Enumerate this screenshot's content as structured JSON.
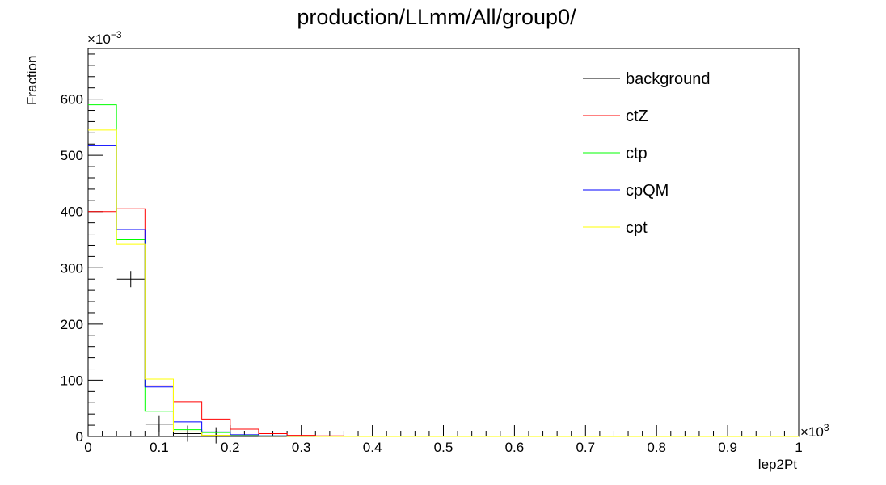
{
  "chart_data": {
    "type": "histogram",
    "title": "production/LLmm/All/group0/",
    "xlabel": "lep2Pt",
    "ylabel": "Fraction",
    "x_multiplier": "×10",
    "x_multiplier_exp": "3",
    "y_multiplier": "×10",
    "y_multiplier_exp": "−3",
    "xlim": [
      0,
      1
    ],
    "ylim": [
      0,
      690
    ],
    "x_ticks": [
      "0",
      "0.1",
      "0.2",
      "0.3",
      "0.4",
      "0.5",
      "0.6",
      "0.7",
      "0.8",
      "0.9",
      "1"
    ],
    "y_ticks": [
      "0",
      "100",
      "200",
      "300",
      "400",
      "500",
      "600"
    ],
    "bin_edges": [
      0,
      0.04,
      0.08,
      0.12,
      0.16,
      0.2,
      0.24,
      0.28,
      0.32,
      0.36,
      0.4,
      0.44,
      0.48,
      0.52,
      0.56,
      0.6,
      0.64,
      0.68,
      0.72,
      0.76,
      0.8,
      0.84,
      0.88,
      0.92,
      0.96,
      1.0
    ],
    "legend_position": "top-right",
    "series": [
      {
        "name": "background",
        "color": "#000000",
        "style": "errorbars",
        "points": [
          {
            "x": 0.06,
            "y": 280
          },
          {
            "x": 0.1,
            "y": 22
          },
          {
            "x": 0.14,
            "y": 5
          },
          {
            "x": 0.18,
            "y": 2
          }
        ]
      },
      {
        "name": "ctZ",
        "color": "#ff0000",
        "style": "step",
        "values": [
          400,
          405,
          90,
          62,
          31,
          13,
          5,
          2,
          1,
          0.5,
          0.3,
          0.2,
          0.1,
          0.1,
          0,
          0,
          0,
          0,
          0,
          0,
          0,
          0,
          0,
          0,
          0
        ]
      },
      {
        "name": "ctp",
        "color": "#00ff00",
        "style": "step",
        "values": [
          590,
          350,
          45,
          12,
          7,
          2,
          1,
          0.5,
          0.2,
          0.1,
          0,
          0,
          0,
          0,
          0,
          0,
          0,
          0,
          0,
          0,
          0,
          0,
          0,
          0,
          0
        ]
      },
      {
        "name": "cpQM",
        "color": "#0000ff",
        "style": "step",
        "values": [
          518,
          368,
          88,
          26,
          8,
          3,
          1,
          0.5,
          0.2,
          0.1,
          0,
          0,
          0,
          0,
          0,
          0,
          0,
          0,
          0,
          0,
          0,
          0,
          0,
          0,
          0
        ]
      },
      {
        "name": "cpt",
        "color": "#ffff00",
        "style": "step",
        "values": [
          545,
          342,
          102,
          8,
          2,
          1,
          0.5,
          0.2,
          0,
          0,
          0,
          0,
          0,
          0,
          0,
          0,
          0,
          0,
          0,
          0,
          0,
          0,
          0,
          0,
          0
        ]
      }
    ]
  }
}
